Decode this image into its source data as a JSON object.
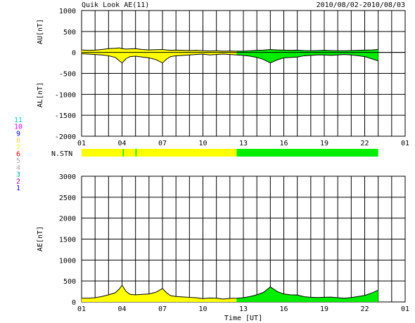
{
  "header": {
    "title": "Quik Look AE(11)",
    "date_range": "2010/08/02-2010/08/03"
  },
  "chart_data": [
    {
      "type": "area",
      "panel": "AU/AL",
      "ylabel_top": "AU[nT]",
      "ylabel_bottom": "AL[nT]",
      "ylim": [
        -2000,
        1000
      ],
      "yticks": [
        1000,
        500,
        0,
        -500,
        -1000,
        -1500,
        -2000
      ],
      "xlim": [
        1,
        25
      ],
      "xticks": [
        "01",
        "04",
        "07",
        "10",
        "13",
        "16",
        "19",
        "22",
        "01"
      ],
      "xtick_hours": [
        1,
        4,
        7,
        10,
        13,
        16,
        19,
        22,
        25
      ],
      "grid": true,
      "data_end_hour": 23.0,
      "color_change_hour": 12.5,
      "colors": {
        "before": "#ffff00",
        "after": "#00ee00",
        "line": "#000000"
      },
      "series": [
        {
          "key": "AU",
          "x": [
            1.0,
            1.5,
            2.0,
            2.5,
            3.0,
            3.5,
            3.8,
            4.0,
            4.3,
            4.6,
            5.0,
            5.5,
            6.0,
            6.5,
            7.0,
            7.3,
            7.6,
            8.0,
            8.5,
            9.0,
            9.5,
            10.0,
            10.5,
            11.0,
            11.5,
            12.0,
            12.5,
            13.0,
            13.5,
            14.0,
            14.5,
            15.0,
            15.5,
            16.0,
            16.5,
            17.0,
            17.5,
            18.0,
            18.5,
            19.0,
            19.5,
            20.0,
            20.5,
            21.0,
            21.5,
            22.0,
            22.5,
            23.0
          ],
          "values": [
            60,
            50,
            55,
            70,
            90,
            100,
            110,
            90,
            80,
            85,
            90,
            70,
            60,
            65,
            70,
            60,
            50,
            55,
            50,
            45,
            50,
            40,
            35,
            40,
            30,
            35,
            30,
            30,
            40,
            50,
            55,
            70,
            60,
            55,
            50,
            55,
            45,
            40,
            45,
            50,
            45,
            40,
            40,
            45,
            50,
            55,
            60,
            70
          ]
        },
        {
          "key": "AL",
          "x": [
            1.0,
            1.5,
            2.0,
            2.5,
            3.0,
            3.5,
            3.8,
            4.0,
            4.3,
            4.6,
            5.0,
            5.5,
            6.0,
            6.5,
            7.0,
            7.3,
            7.6,
            8.0,
            8.5,
            9.0,
            9.5,
            10.0,
            10.5,
            11.0,
            11.5,
            12.0,
            12.5,
            13.0,
            13.5,
            14.0,
            14.5,
            15.0,
            15.5,
            16.0,
            16.5,
            17.0,
            17.5,
            18.0,
            18.5,
            19.0,
            19.5,
            20.0,
            20.5,
            21.0,
            21.5,
            22.0,
            22.5,
            23.0
          ],
          "values": [
            -30,
            -40,
            -50,
            -60,
            -80,
            -120,
            -200,
            -250,
            -150,
            -100,
            -90,
            -110,
            -130,
            -170,
            -250,
            -160,
            -100,
            -80,
            -70,
            -60,
            -50,
            -40,
            -60,
            -50,
            -40,
            -50,
            -60,
            -70,
            -90,
            -120,
            -170,
            -250,
            -180,
            -130,
            -120,
            -110,
            -80,
            -70,
            -60,
            -60,
            -70,
            -60,
            -50,
            -60,
            -80,
            -100,
            -150,
            -200
          ]
        }
      ]
    },
    {
      "type": "bar",
      "panel": "N.STN",
      "label": "N.STN",
      "segments": [
        {
          "start": 1.0,
          "end": 12.5,
          "color": "#ffff00"
        },
        {
          "start": 12.5,
          "end": 23.0,
          "color": "#00ee00"
        }
      ],
      "ticks": [
        {
          "hour": 4.05,
          "color": "#00ee00"
        },
        {
          "hour": 5.0,
          "color": "#00ee00"
        }
      ]
    },
    {
      "type": "area",
      "panel": "AE",
      "ylabel": "AE[nT]",
      "xlabel": "Time [UT]",
      "ylim": [
        0,
        3000
      ],
      "yticks": [
        3000,
        2500,
        2000,
        1500,
        1000,
        500,
        0
      ],
      "xlim": [
        1,
        25
      ],
      "xticks": [
        "01",
        "04",
        "07",
        "10",
        "13",
        "16",
        "19",
        "22",
        "01"
      ],
      "xtick_hours": [
        1,
        4,
        7,
        10,
        13,
        16,
        19,
        22,
        25
      ],
      "grid": true,
      "data_end_hour": 23.0,
      "color_change_hour": 12.5,
      "colors": {
        "before": "#ffff00",
        "after": "#00ee00",
        "line": "#000000"
      },
      "series": [
        {
          "key": "AE",
          "x": [
            1.0,
            1.5,
            2.0,
            2.5,
            3.0,
            3.5,
            3.8,
            4.0,
            4.3,
            4.6,
            5.0,
            5.5,
            6.0,
            6.5,
            7.0,
            7.3,
            7.6,
            8.0,
            8.5,
            9.0,
            9.5,
            10.0,
            10.5,
            11.0,
            11.5,
            12.0,
            12.5,
            13.0,
            13.5,
            14.0,
            14.5,
            15.0,
            15.5,
            16.0,
            16.5,
            17.0,
            17.5,
            18.0,
            18.5,
            19.0,
            19.5,
            20.0,
            20.5,
            21.0,
            21.5,
            22.0,
            22.5,
            23.0
          ],
          "values": [
            90,
            90,
            100,
            130,
            170,
            220,
            310,
            400,
            250,
            180,
            170,
            180,
            190,
            230,
            320,
            220,
            150,
            130,
            120,
            110,
            100,
            80,
            95,
            90,
            70,
            85,
            90,
            100,
            130,
            170,
            230,
            360,
            250,
            190,
            170,
            165,
            125,
            110,
            105,
            110,
            115,
            100,
            90,
            105,
            130,
            155,
            210,
            280
          ]
        }
      ]
    }
  ],
  "legend_numbers": [
    {
      "label": "11",
      "color": "#00cccc"
    },
    {
      "label": "10",
      "color": "#ff00ff"
    },
    {
      "label": "9",
      "color": "#0000cc"
    },
    {
      "label": "8",
      "color": "#ffcc66"
    },
    {
      "label": "7",
      "color": "#ffff00"
    },
    {
      "label": "6",
      "color": "#ee0000"
    },
    {
      "label": "5",
      "color": "#aaaaaa"
    },
    {
      "label": "4",
      "color": "#aaaaaa"
    },
    {
      "label": "3",
      "color": "#00aaaa"
    },
    {
      "label": "2",
      "color": "#aa00aa"
    },
    {
      "label": "1",
      "color": "#0000cc"
    }
  ]
}
